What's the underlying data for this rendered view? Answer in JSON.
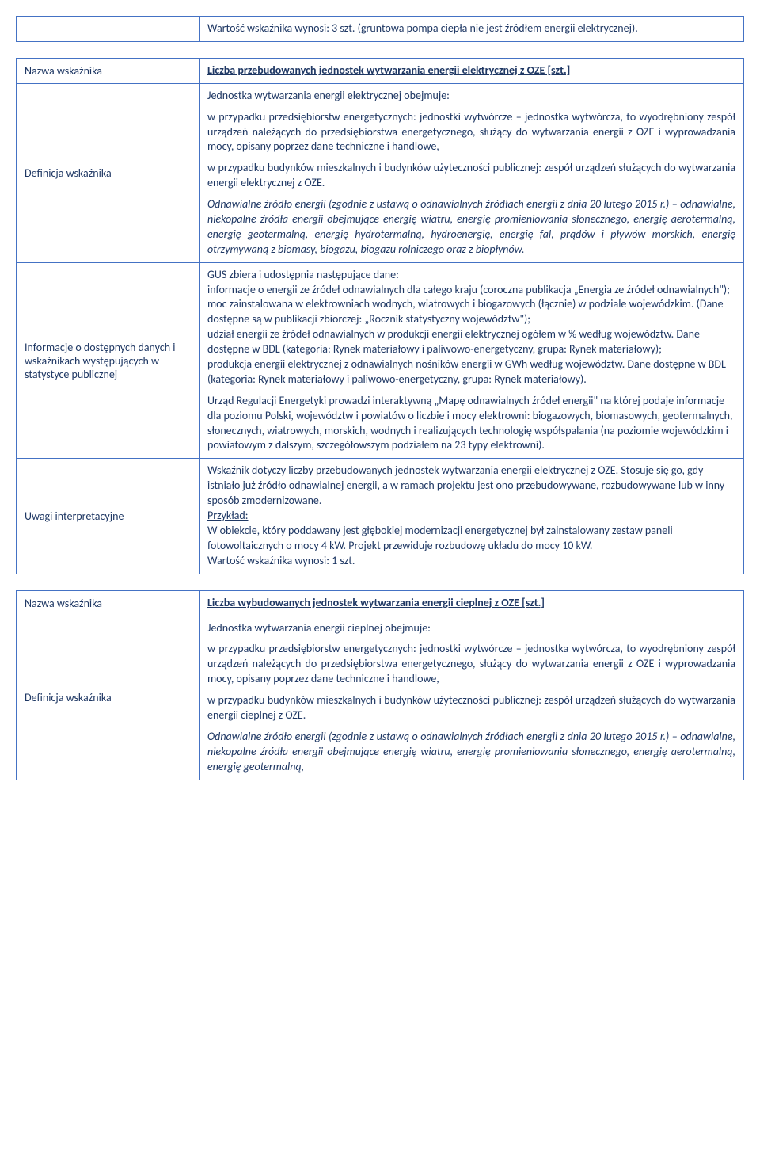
{
  "table0": {
    "row0_value": "Wartość wskaźnika wynosi: 3 szt. (gruntowa pompa ciepła nie jest źródłem energii elektrycznej)."
  },
  "table1": {
    "header_label": "Nazwa wskaźnika",
    "header_value": "Liczba przebudowanych jednostek wytwarzania energii elektrycznej z OZE [szt.]",
    "row1_label": "Definicja wskaźnika",
    "row1_p1": "Jednostka wytwarzania energii elektrycznej obejmuje:",
    "row1_p2": "w przypadku przedsiębiorstw energetycznych: jednostki wytwórcze – jednostka wytwórcza, to wyodrębniony zespół urządzeń należących do przedsiębiorstwa energetycznego, służący do wytwarzania energii z OZE i wyprowadzania mocy, opisany poprzez dane techniczne i handlowe,",
    "row1_p3": "w przypadku budynków mieszkalnych i budynków użyteczności publicznej: zespół urządzeń służących do wytwarzania energii elektrycznej z OZE.",
    "row1_p4": "Odnawialne źródło energii (zgodnie z ustawą o odnawialnych źródłach energii z dnia 20 lutego 2015 r.) – odnawialne, niekopalne źródła energii obejmujące energię wiatru, energię promieniowania słonecznego, energię aerotermalną, energię geotermalną, energię hydrotermalną, hydroenergię, energię fal, prądów i pływów morskich, energię otrzymywaną z biomasy, biogazu, biogazu rolniczego oraz z biopłynów.",
    "row2_label": "Informacje o dostępnych danych i wskaźnikach występujących w statystyce publicznej",
    "row2_p1": "GUS zbiera i udostępnia następujące dane:",
    "row2_p2": "informacje o energii ze źródeł odnawialnych dla całego kraju (coroczna publikacja „Energia ze źródeł odnawialnych\");",
    "row2_p3": "moc zainstalowana w elektrowniach wodnych, wiatrowych i biogazowych (łącznie) w podziale wojewódzkim. (Dane dostępne są w publikacji zbiorczej: „Rocznik statystyczny województw\");",
    "row2_p4": "udział energii ze źródeł odnawialnych w produkcji energii elektrycznej ogółem w % według województw. Dane dostępne w BDL (kategoria: Rynek materiałowy i paliwowo-energetyczny, grupa: Rynek materiałowy);",
    "row2_p5": "produkcja energii elektrycznej z odnawialnych nośników energii w GWh według województw. Dane dostępne w BDL (kategoria: Rynek materiałowy i paliwowo-energetyczny, grupa: Rynek materiałowy).",
    "row2_p6": "Urząd Regulacji Energetyki prowadzi interaktywną „Mapę odnawialnych źródeł energii\" na której podaje informacje dla poziomu Polski, województw i powiatów o liczbie i mocy elektrowni: biogazowych, biomasowych, geotermalnych, słonecznych, wiatrowych, morskich, wodnych i realizujących technologię współspalania (na poziomie wojewódzkim i powiatowym z dalszym, szczegółowszym podziałem na 23 typy elektrowni).",
    "row3_label": "Uwagi interpretacyjne",
    "row3_p1": "Wskaźnik dotyczy liczby przebudowanych jednostek wytwarzania energii elektrycznej z OZE. Stosuje się go, gdy istniało już źródło odnawialnej energii, a w ramach projektu jest ono przebudowywane, rozbudowywane lub w inny sposób zmodernizowane.",
    "row3_p2_label": "Przykład:",
    "row3_p2": "W obiekcie, który poddawany jest głębokiej modernizacji energetycznej był zainstalowany zestaw paneli fotowoltaicznych o mocy 4 kW. Projekt przewiduje rozbudowę układu do mocy 10 kW.",
    "row3_p3": "Wartość wskaźnika wynosi: 1 szt."
  },
  "table2": {
    "header_label": "Nazwa wskaźnika",
    "header_value": "Liczba wybudowanych jednostek wytwarzania energii cieplnej z OZE [szt.]",
    "row1_label": "Definicja wskaźnika",
    "row1_p1": "Jednostka wytwarzania energii cieplnej obejmuje:",
    "row1_p2": "w przypadku przedsiębiorstw energetycznych: jednostki wytwórcze – jednostka wytwórcza, to wyodrębniony zespół urządzeń należących do przedsiębiorstwa energetycznego, służący do wytwarzania energii z OZE i wyprowadzania mocy, opisany poprzez dane techniczne i handlowe,",
    "row1_p3": "w przypadku budynków mieszkalnych i budynków użyteczności publicznej: zespół urządzeń służących do wytwarzania energii cieplnej z OZE.",
    "row1_p4": "Odnawialne źródło energii (zgodnie z ustawą o odnawialnych źródłach energii z dnia 20 lutego 2015 r.) – odnawialne, niekopalne źródła energii obejmujące energię wiatru, energię promieniowania słonecznego, energię aerotermalną, energię geotermalną,"
  }
}
